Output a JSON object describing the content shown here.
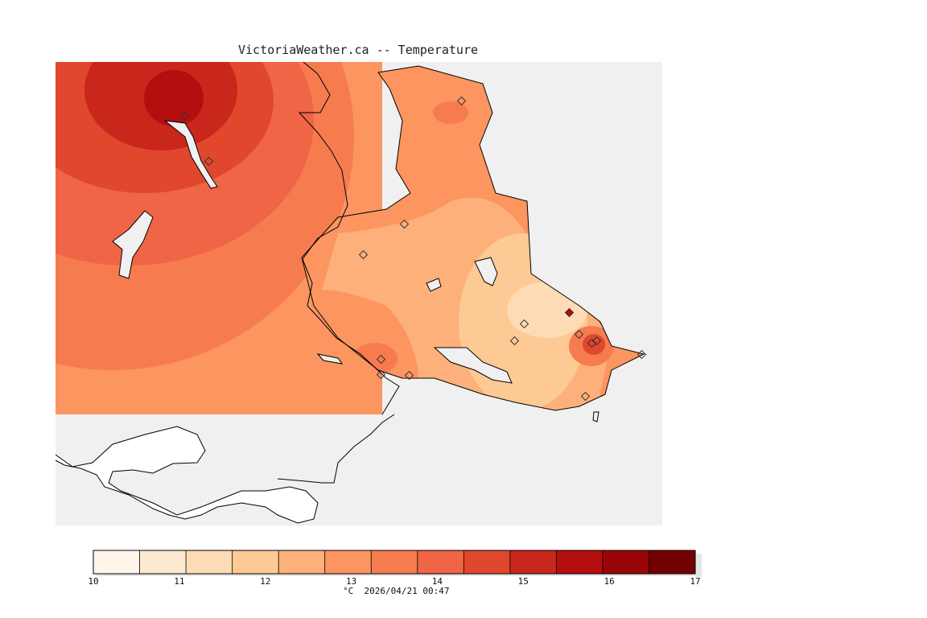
{
  "title": "VictoriaWeather.ca -- Temperature",
  "legend": {
    "ticks": [
      "10",
      "11",
      "12",
      "13",
      "14",
      "15",
      "16",
      "17"
    ],
    "colors": [
      "#fff5eb",
      "#fee9d3",
      "#fddcb5",
      "#fdc994",
      "#fdb07a",
      "#fc9560",
      "#f67c50",
      "#ef6545",
      "#e1472d",
      "#c9261c",
      "#b50e0f",
      "#9a0508",
      "#730003"
    ],
    "units": "°C",
    "timestamp": "2026/04/21 00:47"
  },
  "colors": {
    "ocean": "#f0f0f0",
    "unmodeled_land": "#ffffff",
    "coastline": "#000000"
  }
}
